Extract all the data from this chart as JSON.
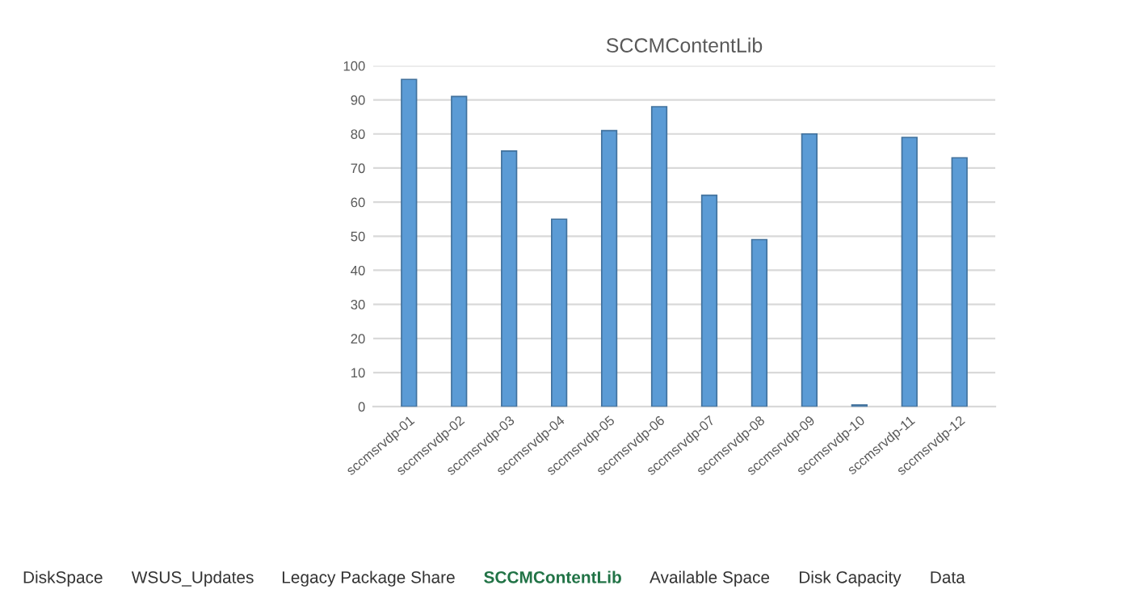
{
  "chart_data": {
    "type": "bar",
    "title": "SCCMContentLib",
    "categories": [
      "sccmsrvdp-01",
      "sccmsrvdp-02",
      "sccmsrvdp-03",
      "sccmsrvdp-04",
      "sccmsrvdp-05",
      "sccmsrvdp-06",
      "sccmsrvdp-07",
      "sccmsrvdp-08",
      "sccmsrvdp-09",
      "sccmsrvdp-10",
      "sccmsrvdp-11",
      "sccmsrvdp-12"
    ],
    "values": [
      96,
      91,
      75,
      55,
      81,
      88,
      62,
      49,
      80,
      0.5,
      79,
      73
    ],
    "color": "#5b9bd5",
    "ylim": [
      0,
      100
    ],
    "yticks": [
      0,
      10,
      20,
      30,
      40,
      50,
      60,
      70,
      80,
      90,
      100
    ],
    "grid": "y",
    "legend": false,
    "annotations": [
      "DiskSpace",
      "WSUS_Updates",
      "Legacy Package Share",
      "SCCMContentLib",
      "Available Space",
      "Disk Capacity",
      "Data"
    ]
  }
}
